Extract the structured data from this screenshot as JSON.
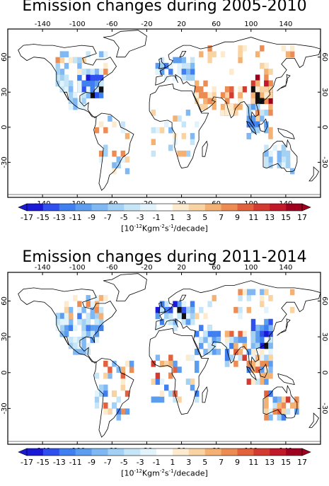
{
  "panels": [
    {
      "title": "Emission changes during 2005-2010",
      "lon_ticks": [
        "-140",
        "-100",
        "-60",
        "-20",
        "20",
        "60",
        "100",
        "140"
      ],
      "lat_ticks_left": [
        "60",
        "30",
        "0",
        "-30"
      ],
      "lat_ticks_right": [
        "60",
        "30",
        "0",
        "-30"
      ],
      "hotspots": [
        {
          "region": "eastern-usa",
          "sign": "decrease",
          "level": 3
        },
        {
          "region": "western-usa",
          "sign": "decrease",
          "level": 1
        },
        {
          "region": "canada",
          "sign": "mixed",
          "level": 1
        },
        {
          "region": "mexico",
          "sign": "decrease",
          "level": 1
        },
        {
          "region": "south-america",
          "sign": "mixed",
          "level": 1
        },
        {
          "region": "europe",
          "sign": "decrease",
          "level": 2
        },
        {
          "region": "russia",
          "sign": "increase",
          "level": 1
        },
        {
          "region": "middle-east",
          "sign": "increase",
          "level": 1
        },
        {
          "region": "india",
          "sign": "increase",
          "level": 2
        },
        {
          "region": "east-china",
          "sign": "increase",
          "level": 3
        },
        {
          "region": "southeast-asia",
          "sign": "mixed",
          "level": 2
        },
        {
          "region": "central-africa",
          "sign": "mixed",
          "level": 1
        },
        {
          "region": "australia",
          "sign": "decrease",
          "level": 1
        }
      ]
    },
    {
      "title": "Emission changes during 2011-2014",
      "lon_ticks": [
        "-140",
        "-100",
        "-60",
        "-20",
        "20",
        "60",
        "100",
        "140"
      ],
      "lat_ticks_left": [
        "60",
        "30",
        "0",
        "-30"
      ],
      "lat_ticks_right": [
        "60",
        "30",
        "0",
        "-30"
      ],
      "hotspots": [
        {
          "region": "eastern-usa",
          "sign": "decrease",
          "level": 2
        },
        {
          "region": "western-usa",
          "sign": "decrease",
          "level": 2
        },
        {
          "region": "canada",
          "sign": "mixed",
          "level": 1
        },
        {
          "region": "mexico",
          "sign": "decrease",
          "level": 1
        },
        {
          "region": "south-america",
          "sign": "mixed",
          "level": 2
        },
        {
          "region": "europe",
          "sign": "decrease",
          "level": 3
        },
        {
          "region": "russia",
          "sign": "mixed",
          "level": 1
        },
        {
          "region": "middle-east",
          "sign": "decrease",
          "level": 2
        },
        {
          "region": "india",
          "sign": "mixed",
          "level": 2
        },
        {
          "region": "east-china",
          "sign": "decrease",
          "level": 3
        },
        {
          "region": "southeast-asia",
          "sign": "mixed",
          "level": 2
        },
        {
          "region": "central-africa",
          "sign": "mixed",
          "level": 2
        },
        {
          "region": "australia",
          "sign": "mixed",
          "level": 2
        }
      ]
    }
  ],
  "colorbar": {
    "labels": [
      "-17",
      "-15",
      "-13",
      "-11",
      "-9",
      "-7",
      "-5",
      "-3",
      "-1",
      "1",
      "3",
      "5",
      "7",
      "9",
      "11",
      "13",
      "15",
      "17"
    ],
    "colors": [
      "#1a1ad6",
      "#2f50ef",
      "#3f7fef",
      "#5c9df0",
      "#7fb8f2",
      "#a3d1f4",
      "#c6e6f7",
      "#e3f3fb",
      "#ffffff",
      "#fdebd0",
      "#f9d3a2",
      "#f3b173",
      "#ec8c53",
      "#e2623e",
      "#d43b30",
      "#c1182a",
      "#a0001f"
    ],
    "unit": {
      "base": "[10",
      "exp1": "-12",
      "mid": "Kgm",
      "exp2": "-2",
      "s": "s",
      "exp3": "-1",
      "tail": "/decade]"
    }
  }
}
